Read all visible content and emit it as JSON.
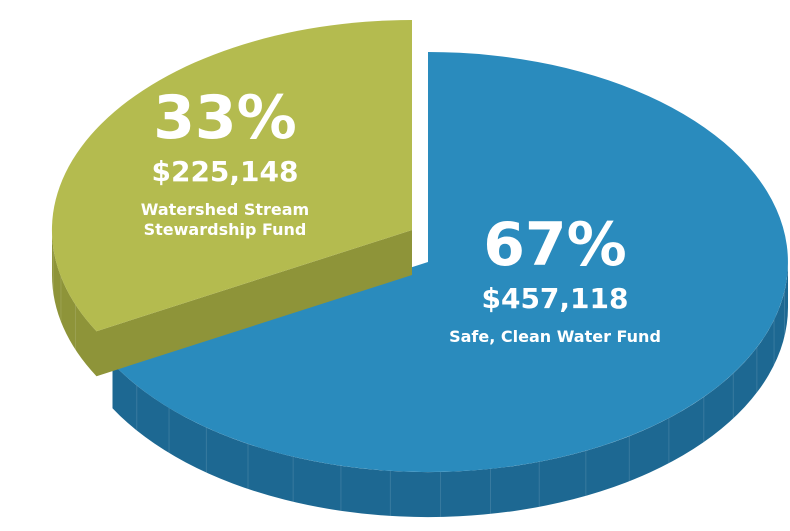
{
  "chart_data": {
    "type": "pie",
    "categories": [
      "Safe, Clean Water Fund",
      "Watershed Stream Stewardship Fund"
    ],
    "values": [
      67,
      33
    ],
    "value_labels": [
      "67%",
      "33%"
    ],
    "amount_labels": [
      "$457,118",
      "$225,148"
    ],
    "colors": [
      "#2a8bbd",
      "#b4bb4f"
    ],
    "side_colors": [
      "#1d6892",
      "#8e9439"
    ]
  }
}
